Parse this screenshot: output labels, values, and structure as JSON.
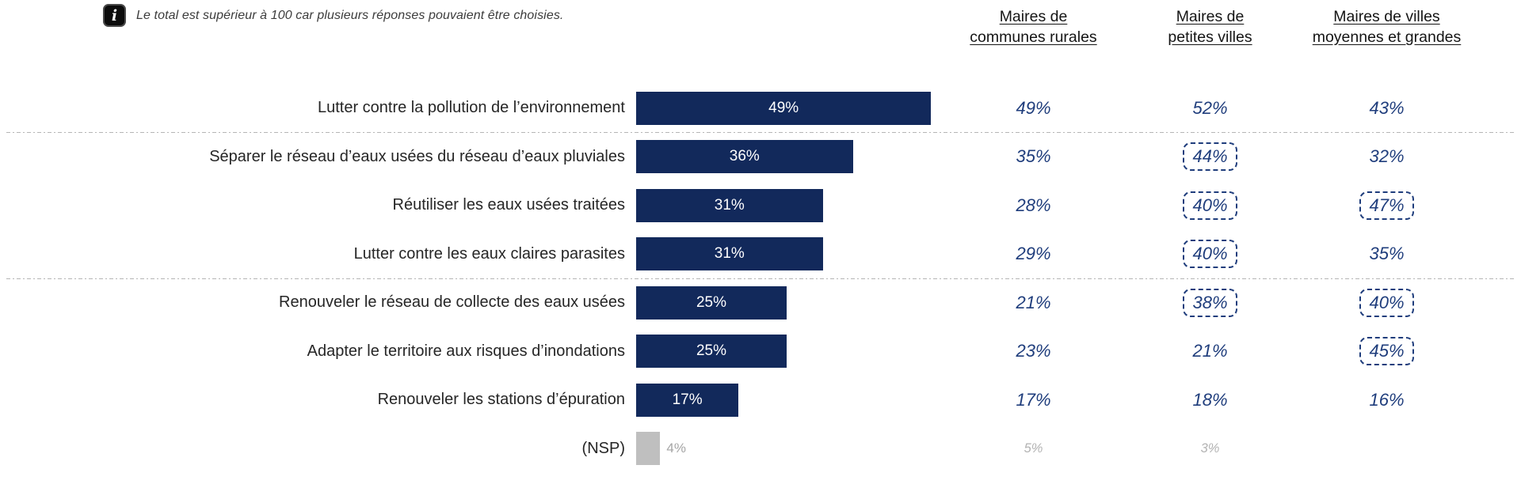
{
  "note": {
    "icon": "info-icon",
    "icon_glyph": "i",
    "text": "Le total est supérieur à 100 car plusieurs réponses pouvaient être choisies."
  },
  "columns": [
    {
      "line1": "Maires de",
      "line2": "communes rurales"
    },
    {
      "line1": "Maires de",
      "line2": "petites villes"
    },
    {
      "line1": "Maires de villes",
      "line2": "moyennes et grandes"
    }
  ],
  "rows": [
    {
      "label": "Lutter contre la pollution de l’environnement",
      "bar_pct": 49,
      "bar_label": "49%",
      "values": [
        {
          "text": "49%",
          "boxed": false
        },
        {
          "text": "52%",
          "boxed": false
        },
        {
          "text": "43%",
          "boxed": false
        }
      ]
    },
    {
      "label": "Séparer le réseau d’eaux usées du réseau d’eaux pluviales",
      "bar_pct": 36,
      "bar_label": "36%",
      "values": [
        {
          "text": "35%",
          "boxed": false
        },
        {
          "text": "44%",
          "boxed": true
        },
        {
          "text": "32%",
          "boxed": false
        }
      ]
    },
    {
      "label": "Réutiliser les eaux usées traitées",
      "bar_pct": 31,
      "bar_label": "31%",
      "values": [
        {
          "text": "28%",
          "boxed": false
        },
        {
          "text": "40%",
          "boxed": true
        },
        {
          "text": "47%",
          "boxed": true
        }
      ]
    },
    {
      "label": "Lutter contre les eaux claires parasites",
      "bar_pct": 31,
      "bar_label": "31%",
      "values": [
        {
          "text": "29%",
          "boxed": false
        },
        {
          "text": "40%",
          "boxed": true
        },
        {
          "text": "35%",
          "boxed": false
        }
      ]
    },
    {
      "label": "Renouveler le réseau de collecte des eaux usées",
      "bar_pct": 25,
      "bar_label": "25%",
      "values": [
        {
          "text": "21%",
          "boxed": false
        },
        {
          "text": "38%",
          "boxed": true
        },
        {
          "text": "40%",
          "boxed": true
        }
      ]
    },
    {
      "label": "Adapter le territoire aux risques d’inondations",
      "bar_pct": 25,
      "bar_label": "25%",
      "values": [
        {
          "text": "23%",
          "boxed": false
        },
        {
          "text": "21%",
          "boxed": false
        },
        {
          "text": "45%",
          "boxed": true
        }
      ]
    },
    {
      "label": "Renouveler les stations d’épuration",
      "bar_pct": 17,
      "bar_label": "17%",
      "values": [
        {
          "text": "17%",
          "boxed": false
        },
        {
          "text": "18%",
          "boxed": false
        },
        {
          "text": "16%",
          "boxed": false
        }
      ]
    },
    {
      "label": "(NSP)",
      "bar_pct": 4,
      "bar_label": "4%",
      "values": [
        {
          "text": "5%",
          "boxed": false
        },
        {
          "text": "3%",
          "boxed": false
        },
        {
          "text": "",
          "boxed": false
        }
      ]
    }
  ],
  "colors": {
    "bar_navy": "#12295B",
    "value_navy": "#1F3D7C",
    "nsp_bar_gray": "#BFBFBF",
    "nsp_text_gray": "#A6A6A6",
    "separator_gray": "#B5B5B5"
  },
  "chart_data": {
    "type": "bar",
    "orientation": "horizontal",
    "title": "",
    "note": "Le total est supérieur à 100 car plusieurs réponses pouvaient être choisies.",
    "unit": "%",
    "xlim": [
      0,
      52
    ],
    "grid": false,
    "categories": [
      "Lutter contre la pollution de l’environnement",
      "Séparer le réseau d’eaux usées du réseau d’eaux pluviales",
      "Réutiliser les eaux usées traitées",
      "Lutter contre les eaux claires parasites",
      "Renouveler le réseau de collecte des eaux usées",
      "Adapter le territoire aux risques d’inondations",
      "Renouveler les stations d’épuration",
      "(NSP)"
    ],
    "values": [
      49,
      36,
      31,
      31,
      25,
      25,
      17,
      4
    ],
    "series": [
      {
        "name": "Maires de communes rurales",
        "values": [
          49,
          35,
          28,
          29,
          21,
          23,
          17,
          5
        ]
      },
      {
        "name": "Maires de petites villes",
        "values": [
          52,
          44,
          40,
          40,
          38,
          21,
          18,
          3
        ]
      },
      {
        "name": "Maires de villes moyennes et grandes",
        "values": [
          43,
          32,
          47,
          35,
          40,
          45,
          16,
          null
        ]
      }
    ],
    "boxed_highlights": [
      {
        "row": 1,
        "series": "Maires de petites villes",
        "value": 44
      },
      {
        "row": 2,
        "series": "Maires de petites villes",
        "value": 40
      },
      {
        "row": 2,
        "series": "Maires de villes moyennes et grandes",
        "value": 47
      },
      {
        "row": 3,
        "series": "Maires de petites villes",
        "value": 40
      },
      {
        "row": 4,
        "series": "Maires de petites villes",
        "value": 38
      },
      {
        "row": 4,
        "series": "Maires de villes moyennes et grandes",
        "value": 40
      },
      {
        "row": 5,
        "series": "Maires de villes moyennes et grandes",
        "value": 45
      }
    ]
  }
}
